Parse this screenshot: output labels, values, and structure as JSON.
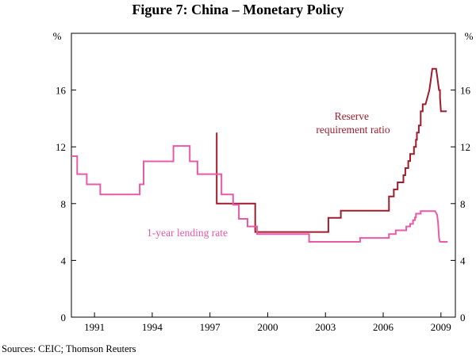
{
  "chart_data": {
    "type": "line",
    "title": "Figure 7: China – Monetary Policy",
    "unit_left": "%",
    "unit_right": "%",
    "ylim": [
      0,
      20
    ],
    "yticks": [
      0,
      4,
      8,
      12,
      16
    ],
    "xlim": [
      1989.8,
      2009.75
    ],
    "xticks": [
      1991,
      1994,
      1997,
      2000,
      2003,
      2006,
      2009
    ],
    "grid": false,
    "source": "Sources: CEIC; Thomson Reuters",
    "series": [
      {
        "name": "Reserve requirement ratio",
        "label_lines": [
          "Reserve",
          "requirement ratio"
        ],
        "color": "#a01c2c",
        "points": [
          [
            1997.35,
            13.0
          ],
          [
            1997.35,
            8.0
          ],
          [
            1998.0,
            8.0
          ],
          [
            1998.3,
            8.0
          ],
          [
            1999.35,
            8.0
          ],
          [
            1999.35,
            6.0
          ],
          [
            2003.15,
            6.0
          ],
          [
            2003.15,
            7.0
          ],
          [
            2003.8,
            7.0
          ],
          [
            2003.8,
            7.5
          ],
          [
            2006.0,
            7.5
          ],
          [
            2006.3,
            7.5
          ],
          [
            2006.3,
            8.5
          ],
          [
            2006.55,
            8.5
          ],
          [
            2006.55,
            9.0
          ],
          [
            2006.75,
            9.0
          ],
          [
            2006.75,
            9.5
          ],
          [
            2007.05,
            9.5
          ],
          [
            2007.05,
            10.0
          ],
          [
            2007.15,
            10.0
          ],
          [
            2007.15,
            10.5
          ],
          [
            2007.3,
            10.5
          ],
          [
            2007.3,
            11.0
          ],
          [
            2007.4,
            11.0
          ],
          [
            2007.4,
            11.5
          ],
          [
            2007.6,
            11.5
          ],
          [
            2007.6,
            12.0
          ],
          [
            2007.7,
            12.0
          ],
          [
            2007.7,
            12.5
          ],
          [
            2007.75,
            12.5
          ],
          [
            2007.75,
            13.0
          ],
          [
            2007.85,
            13.0
          ],
          [
            2007.85,
            13.5
          ],
          [
            2007.95,
            13.5
          ],
          [
            2007.95,
            14.5
          ],
          [
            2008.05,
            14.5
          ],
          [
            2008.05,
            15.0
          ],
          [
            2008.2,
            15.0
          ],
          [
            2008.3,
            15.5
          ],
          [
            2008.4,
            16.0
          ],
          [
            2008.45,
            16.5
          ],
          [
            2008.5,
            17.0
          ],
          [
            2008.55,
            17.5
          ],
          [
            2008.75,
            17.5
          ],
          [
            2008.8,
            17.0
          ],
          [
            2008.85,
            16.5
          ],
          [
            2008.9,
            16.0
          ],
          [
            2008.95,
            16.0
          ],
          [
            2008.95,
            15.5
          ],
          [
            2009.0,
            14.5
          ],
          [
            2009.3,
            14.5
          ]
        ]
      },
      {
        "name": "1-year lending rate",
        "label_lines": [
          "1-year lending rate"
        ],
        "color": "#e85aa8",
        "points": [
          [
            1989.85,
            11.34
          ],
          [
            1990.1,
            11.34
          ],
          [
            1990.1,
            10.08
          ],
          [
            1990.6,
            10.08
          ],
          [
            1990.6,
            9.36
          ],
          [
            1991.3,
            9.36
          ],
          [
            1991.3,
            8.64
          ],
          [
            1993.35,
            8.64
          ],
          [
            1993.35,
            9.36
          ],
          [
            1993.55,
            9.36
          ],
          [
            1993.55,
            10.98
          ],
          [
            1995.1,
            10.98
          ],
          [
            1995.1,
            12.06
          ],
          [
            1995.95,
            12.06
          ],
          [
            1995.95,
            10.98
          ],
          [
            1996.35,
            10.98
          ],
          [
            1996.35,
            10.08
          ],
          [
            1997.6,
            10.08
          ],
          [
            1997.6,
            8.64
          ],
          [
            1998.2,
            8.64
          ],
          [
            1998.2,
            7.92
          ],
          [
            1998.5,
            7.92
          ],
          [
            1998.5,
            6.93
          ],
          [
            1998.95,
            6.93
          ],
          [
            1998.95,
            6.39
          ],
          [
            1999.45,
            6.39
          ],
          [
            1999.45,
            5.85
          ],
          [
            2002.15,
            5.85
          ],
          [
            2002.15,
            5.31
          ],
          [
            2004.8,
            5.31
          ],
          [
            2004.8,
            5.58
          ],
          [
            2006.3,
            5.58
          ],
          [
            2006.3,
            5.85
          ],
          [
            2006.65,
            5.85
          ],
          [
            2006.65,
            6.12
          ],
          [
            2007.2,
            6.12
          ],
          [
            2007.2,
            6.39
          ],
          [
            2007.4,
            6.39
          ],
          [
            2007.4,
            6.57
          ],
          [
            2007.55,
            6.57
          ],
          [
            2007.55,
            6.84
          ],
          [
            2007.65,
            6.84
          ],
          [
            2007.65,
            7.02
          ],
          [
            2007.7,
            7.02
          ],
          [
            2007.7,
            7.29
          ],
          [
            2007.95,
            7.29
          ],
          [
            2007.95,
            7.47
          ],
          [
            2008.7,
            7.47
          ],
          [
            2008.8,
            7.2
          ],
          [
            2008.85,
            6.66
          ],
          [
            2008.9,
            5.58
          ],
          [
            2008.95,
            5.31
          ],
          [
            2009.35,
            5.31
          ]
        ]
      }
    ]
  }
}
